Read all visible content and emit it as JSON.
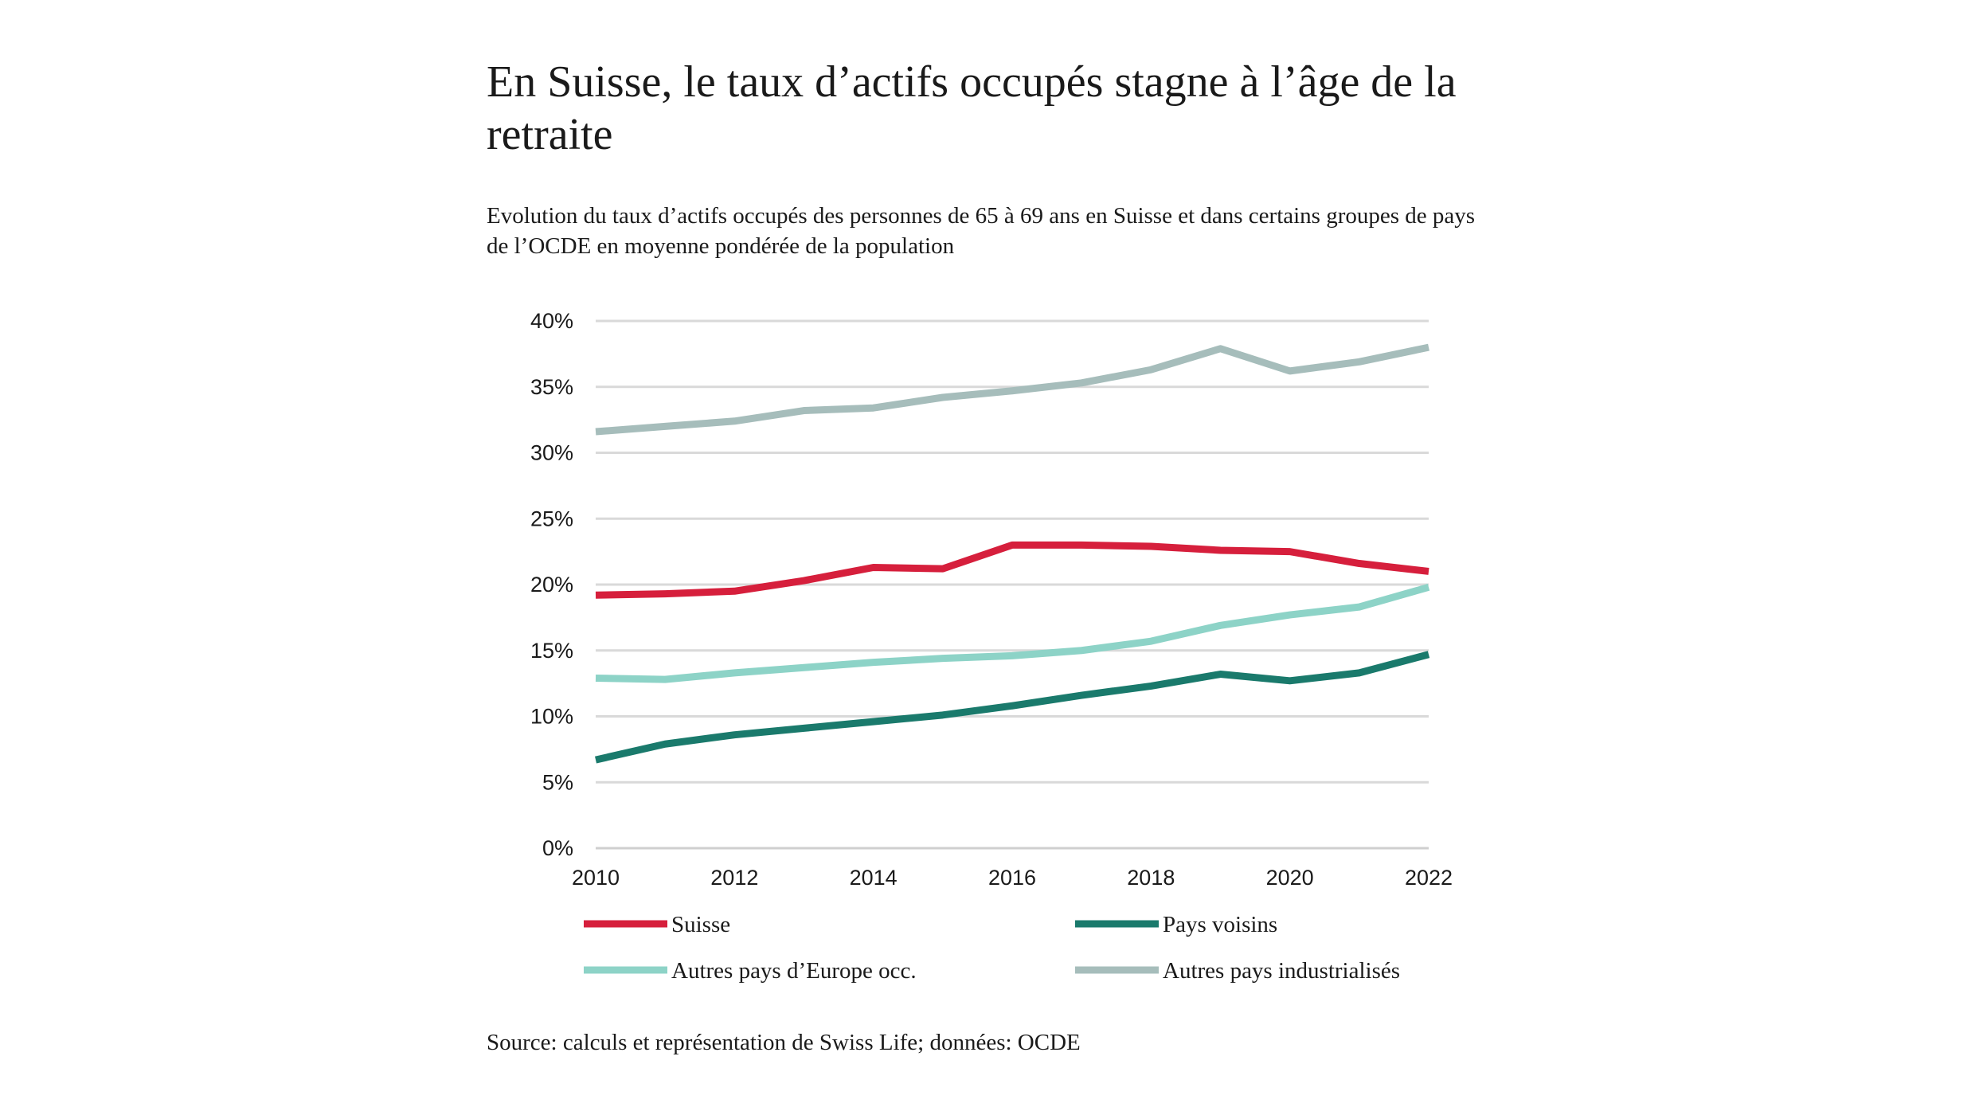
{
  "chart_data": {
    "type": "line",
    "title": "En Suisse, le taux d’actifs occupés stagne à l’âge de la retraite",
    "subtitle": "Evolution du taux d’actifs occupés des personnes de 65 à 69 ans en Suisse et dans certains groupes de pays de l’OCDE en moyenne pondérée de la population",
    "source": "Source: calculs et représentation de Swiss Life; données: OCDE",
    "x": [
      2010,
      2011,
      2012,
      2013,
      2014,
      2015,
      2016,
      2017,
      2018,
      2019,
      2020,
      2021,
      2022
    ],
    "x_tick_labels": [
      "2010",
      "2012",
      "2014",
      "2016",
      "2018",
      "2020",
      "2022"
    ],
    "y_tick_labels": [
      "0%",
      "5%",
      "10%",
      "15%",
      "20%",
      "25%",
      "30%",
      "35%",
      "40%"
    ],
    "ylim": [
      0,
      40
    ],
    "grid": true,
    "legend_position": "bottom",
    "series": [
      {
        "name": "Suisse",
        "color": "#d61f3c",
        "values": [
          19.2,
          19.3,
          19.5,
          20.3,
          21.3,
          21.2,
          23.0,
          23.0,
          22.9,
          22.6,
          22.5,
          21.6,
          21.0
        ]
      },
      {
        "name": "Pays voisins",
        "color": "#1a7a6c",
        "values": [
          6.7,
          7.9,
          8.6,
          9.1,
          9.6,
          10.1,
          10.8,
          11.6,
          12.3,
          13.2,
          12.7,
          13.3,
          14.7
        ]
      },
      {
        "name": "Autres pays d’Europe occ.",
        "color": "#8dd3c7",
        "values": [
          12.9,
          12.8,
          13.3,
          13.7,
          14.1,
          14.4,
          14.6,
          15.0,
          15.7,
          16.9,
          17.7,
          18.3,
          19.8
        ]
      },
      {
        "name": "Autres pays industrialisés",
        "color": "#a6bdbb",
        "values": [
          31.6,
          32.0,
          32.4,
          33.2,
          33.4,
          34.2,
          34.7,
          35.3,
          36.3,
          37.9,
          36.2,
          36.9,
          38.0
        ]
      }
    ]
  }
}
